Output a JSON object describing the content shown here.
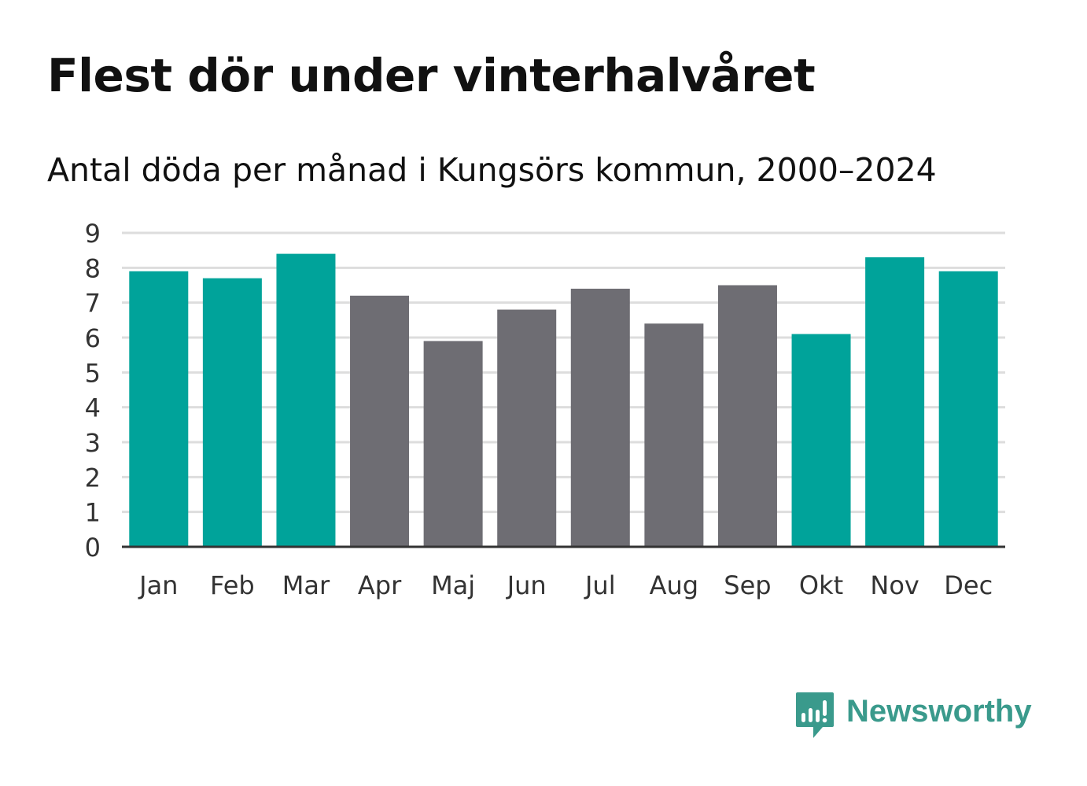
{
  "title": "Flest dör under vinterhalvåret",
  "subtitle": "Antal döda per månad i Kungsörs kommun, 2000–2024",
  "brand": {
    "name": "Newsworthy",
    "icon": "newsworthy-logo-icon"
  },
  "colors": {
    "winter": "#00a39a",
    "summer": "#6e6d73",
    "grid": "#dddddd",
    "axis": "#333333",
    "brand": "#3a9a8c"
  },
  "chart_data": {
    "type": "bar",
    "title": "Flest dör under vinterhalvåret",
    "subtitle": "Antal döda per månad i Kungsörs kommun, 2000–2024",
    "xlabel": "",
    "ylabel": "",
    "ylim": [
      0,
      9
    ],
    "yticks": [
      0,
      1,
      2,
      3,
      4,
      5,
      6,
      7,
      8,
      9
    ],
    "grid": true,
    "categories": [
      "Jan",
      "Feb",
      "Mar",
      "Apr",
      "Maj",
      "Jun",
      "Jul",
      "Aug",
      "Sep",
      "Okt",
      "Nov",
      "Dec"
    ],
    "values": [
      7.9,
      7.7,
      8.4,
      7.2,
      5.9,
      6.8,
      7.4,
      6.4,
      7.5,
      6.1,
      8.3,
      7.9
    ],
    "highlight": [
      "winter",
      "winter",
      "winter",
      "summer",
      "summer",
      "summer",
      "summer",
      "summer",
      "summer",
      "winter",
      "winter",
      "winter"
    ]
  }
}
